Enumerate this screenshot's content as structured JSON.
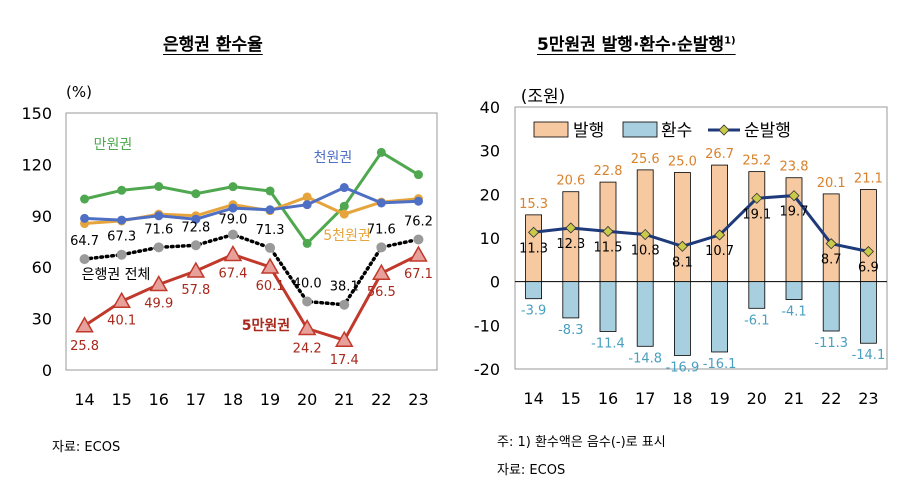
{
  "left_title": "은행권 환수율",
  "right_title": "5만원권 발행·환수·순발행",
  "right_title_sup": "1)",
  "left_source": "자료: ECOS",
  "right_note": "주: 1) 환수액은 음수(-)로 표시",
  "right_source": "자료: ECOS",
  "chart_data": [
    {
      "type": "line",
      "title": "은행권 환수율",
      "ylabel": "(%)",
      "ylim": [
        0,
        150
      ],
      "yticks": [
        0,
        30,
        60,
        90,
        120,
        150
      ],
      "categories": [
        "14",
        "15",
        "16",
        "17",
        "18",
        "19",
        "20",
        "21",
        "22",
        "23"
      ],
      "grid": false,
      "series": [
        {
          "name": "만원권",
          "color": "#4fa84f",
          "values": [
            99.8,
            104.9,
            107.1,
            102.9,
            107.0,
            104.5,
            73.9,
            95.6,
            127.0,
            114.0
          ]
        },
        {
          "name": "5천원권",
          "color": "#e6a53c",
          "values": [
            85.5,
            87.0,
            91.0,
            90.0,
            96.5,
            93.0,
            101.0,
            91.0,
            98.0,
            100.0
          ]
        },
        {
          "name": "천원권",
          "color": "#4f6fc4",
          "values": [
            88.5,
            87.5,
            90.0,
            88.0,
            94.5,
            93.5,
            96.5,
            106.5,
            97.5,
            98.5
          ]
        },
        {
          "name": "은행권 전체",
          "color": "#000000",
          "values": [
            64.7,
            67.3,
            71.6,
            72.8,
            79.0,
            71.3,
            40.0,
            38.1,
            71.6,
            76.2
          ]
        },
        {
          "name": "5만원권",
          "color": "#c0392b",
          "values": [
            25.8,
            40.1,
            49.9,
            57.8,
            67.4,
            60.1,
            24.2,
            17.4,
            56.5,
            67.1
          ]
        }
      ]
    },
    {
      "type": "bar",
      "title": "5만원권 발행·환수·순발행",
      "ylabel": "(조원)",
      "ylim": [
        -20,
        40
      ],
      "yticks": [
        -20,
        -10,
        0,
        10,
        20,
        30,
        40
      ],
      "categories": [
        "14",
        "15",
        "16",
        "17",
        "18",
        "19",
        "20",
        "21",
        "22",
        "23"
      ],
      "legend": "top-left",
      "series": [
        {
          "name": "발행",
          "color": "#f6c9a0",
          "values": [
            15.3,
            20.6,
            22.8,
            25.6,
            25.0,
            26.7,
            25.2,
            23.8,
            20.1,
            21.1
          ]
        },
        {
          "name": "환수",
          "color": "#a8cfe0",
          "values": [
            -3.9,
            -8.3,
            -11.4,
            -14.8,
            -16.9,
            -16.1,
            -6.1,
            -4.1,
            -11.3,
            -14.1
          ]
        },
        {
          "name": "순발행",
          "type": "line",
          "color": "#1f3a7a",
          "values": [
            11.3,
            12.3,
            11.5,
            10.8,
            8.1,
            10.7,
            19.1,
            19.7,
            8.7,
            6.9
          ]
        }
      ]
    }
  ]
}
